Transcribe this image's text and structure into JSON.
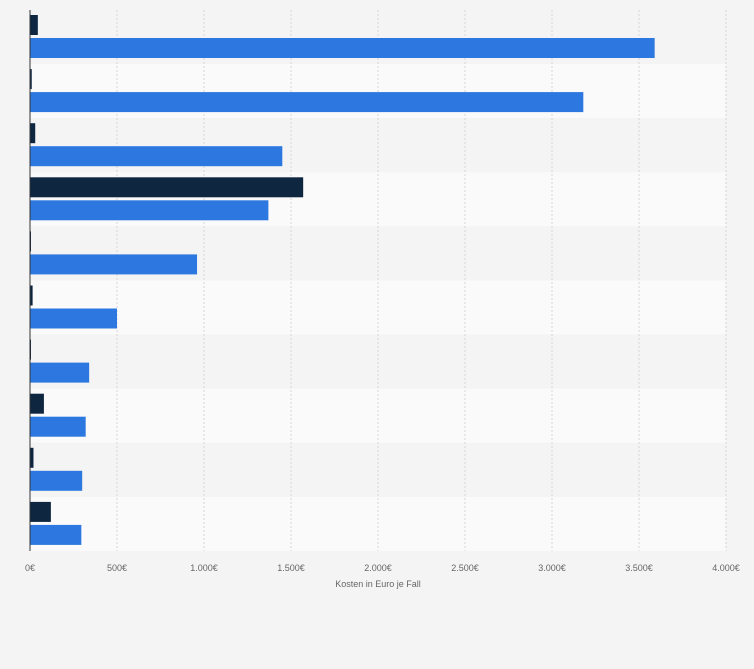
{
  "chart_data": {
    "type": "bar",
    "orientation": "horizontal",
    "title": "",
    "xlabel": "Kosten in Euro je Fall",
    "ylabel": "",
    "xlim": [
      0,
      4000
    ],
    "x_ticks": [
      0,
      500,
      1000,
      1500,
      2000,
      2500,
      3000,
      3500,
      4000
    ],
    "x_tick_labels": [
      "0€",
      "500€",
      "1.000€",
      "1.500€",
      "2.000€",
      "2.500€",
      "3.000€",
      "3.500€",
      "4.000€"
    ],
    "grid": true,
    "legend": "none",
    "categories": [
      "",
      "",
      "",
      "",
      "",
      "",
      "",
      "",
      "",
      ""
    ],
    "series": [
      {
        "name": "",
        "color": "#0f2640",
        "values": [
          45,
          10,
          30,
          1570,
          5,
          15,
          5,
          80,
          20,
          120
        ]
      },
      {
        "name": "",
        "color": "#2c78e0",
        "values": [
          3590,
          3180,
          1450,
          1370,
          960,
          500,
          340,
          320,
          300,
          295
        ]
      }
    ]
  }
}
